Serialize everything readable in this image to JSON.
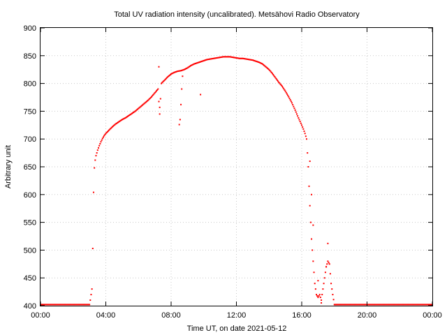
{
  "chart_data": {
    "type": "scatter",
    "title": "Total UV radiation intensity (uncalibrated). Metsähovi Radio Observatory",
    "xlabel": "Time UT, on date 2021-05-12",
    "ylabel": "Arbitrary unit",
    "xlim": [
      0,
      24
    ],
    "ylim": [
      400,
      900
    ],
    "x_ticks": [
      {
        "value": 0,
        "label": "00:00"
      },
      {
        "value": 4,
        "label": "04:00"
      },
      {
        "value": 8,
        "label": "08:00"
      },
      {
        "value": 12,
        "label": "12:00"
      },
      {
        "value": 16,
        "label": "16:00"
      },
      {
        "value": 20,
        "label": "20:00"
      },
      {
        "value": 24,
        "label": "00:00"
      }
    ],
    "y_ticks": [
      400,
      450,
      500,
      550,
      600,
      650,
      700,
      750,
      800,
      850,
      900
    ],
    "grid": true,
    "color": "#ff0000",
    "x_unit": "hours UT",
    "series": [
      {
        "x": [
          0.0,
          0.5,
          1.0,
          1.5,
          2.0,
          2.5,
          3.0,
          3.05,
          3.1,
          3.15,
          3.2,
          3.25,
          3.3,
          3.35,
          3.4,
          3.5,
          3.6,
          3.7,
          3.8,
          3.9,
          4.0,
          4.2,
          4.4,
          4.6,
          4.8,
          5.0,
          5.2,
          5.4,
          5.6,
          5.8,
          6.0,
          6.2,
          6.4,
          6.6,
          6.8,
          7.0,
          7.2,
          7.3,
          7.4,
          7.6,
          7.8,
          8.0,
          8.2,
          8.4,
          8.6,
          8.8,
          9.0,
          9.2,
          9.4,
          9.6,
          9.8,
          10.0,
          10.2,
          10.4,
          10.6,
          10.8,
          11.0,
          11.2,
          11.4,
          11.6,
          11.8,
          12.0,
          12.2,
          12.4,
          12.6,
          12.8,
          13.0,
          13.2,
          13.4,
          13.6,
          13.8,
          14.0,
          14.2,
          14.4,
          14.6,
          14.8,
          15.0,
          15.2,
          15.4,
          15.6,
          15.8,
          16.0,
          16.1,
          16.2,
          16.3,
          16.4,
          16.5,
          16.6,
          16.7,
          16.8,
          16.9,
          17.0,
          17.1,
          17.2,
          17.3,
          17.4,
          17.5,
          17.6,
          17.7,
          17.8,
          17.9,
          18.0,
          18.5,
          19.0,
          19.5,
          20.0,
          20.5,
          21.0,
          21.5,
          22.0,
          22.5,
          23.0,
          23.5,
          24.0
        ],
        "y": [
          402,
          402,
          402,
          402,
          402,
          402,
          402,
          410,
          420,
          430,
          503,
          604,
          648,
          662,
          670,
          680,
          688,
          695,
          701,
          706,
          710,
          716,
          722,
          727,
          731,
          735,
          738,
          742,
          746,
          750,
          755,
          760,
          765,
          770,
          776,
          783,
          790,
          745,
          800,
          806,
          812,
          817,
          820,
          822,
          823,
          825,
          828,
          832,
          835,
          837,
          839,
          841,
          843,
          844,
          845,
          846,
          847,
          848,
          848,
          848,
          847,
          846,
          845,
          845,
          844,
          843,
          842,
          840,
          838,
          835,
          830,
          825,
          818,
          810,
          802,
          795,
          786,
          776,
          765,
          752,
          738,
          725,
          718,
          710,
          700,
          650,
          580,
          520,
          480,
          440,
          420,
          415,
          420,
          410,
          430,
          450,
          470,
          480,
          475,
          440,
          420,
          402,
          402,
          402,
          402,
          402,
          402,
          402,
          402,
          402,
          402,
          402,
          402,
          402
        ]
      },
      {
        "x": [
          7.25,
          7.3,
          8.5,
          8.55,
          8.6,
          8.65,
          8.7,
          9.8,
          17.0,
          17.2,
          17.5,
          17.6,
          16.5,
          16.6,
          16.7
        ],
        "y": [
          830,
          757,
          726,
          735,
          762,
          790,
          813,
          780,
          445,
          405,
          470,
          512,
          660,
          600,
          545
        ]
      }
    ]
  }
}
